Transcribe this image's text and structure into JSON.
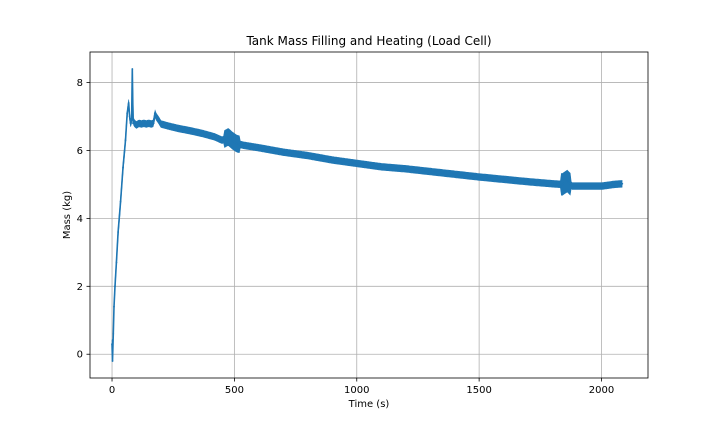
{
  "chart_data": {
    "type": "line",
    "title": "Tank Mass Filling and Heating (Load Cell)",
    "xlabel": "Time (s)",
    "ylabel": "Mass (kg)",
    "xlim": [
      -90,
      2190
    ],
    "ylim": [
      -0.7,
      8.9
    ],
    "xticks": [
      0,
      500,
      1000,
      1500,
      2000
    ],
    "yticks": [
      0,
      2,
      4,
      6,
      8
    ],
    "grid": true,
    "color": "#1f77b4",
    "series": [
      {
        "x": [
          0,
          2,
          5,
          8,
          12,
          18,
          25,
          35,
          45,
          55,
          62,
          68,
          72,
          76,
          80,
          83,
          86,
          88,
          92,
          100,
          110,
          120,
          130,
          140,
          150,
          160,
          170,
          175,
          180,
          190,
          200,
          230,
          270,
          320,
          370,
          420,
          450,
          475,
          490,
          510,
          540,
          600,
          700,
          800,
          900,
          1000,
          1100,
          1200,
          1300,
          1400,
          1500,
          1600,
          1700,
          1800,
          1840,
          1860,
          1880,
          1900,
          1950,
          2000,
          2050,
          2085
        ],
        "y": [
          0.3,
          -0.2,
          0.6,
          1.4,
          2.0,
          2.7,
          3.6,
          4.5,
          5.5,
          6.3,
          7.1,
          7.4,
          7.0,
          6.8,
          6.9,
          8.4,
          6.8,
          6.85,
          6.8,
          6.75,
          6.8,
          6.78,
          6.8,
          6.78,
          6.8,
          6.78,
          6.8,
          7.1,
          7.0,
          6.9,
          6.78,
          6.72,
          6.65,
          6.58,
          6.5,
          6.4,
          6.3,
          6.4,
          6.3,
          6.2,
          6.15,
          6.08,
          5.95,
          5.85,
          5.72,
          5.62,
          5.52,
          5.46,
          5.38,
          5.3,
          5.22,
          5.15,
          5.08,
          5.02,
          5.0,
          5.1,
          4.95,
          4.95,
          4.95,
          4.95,
          5.0,
          5.02
        ]
      }
    ]
  }
}
